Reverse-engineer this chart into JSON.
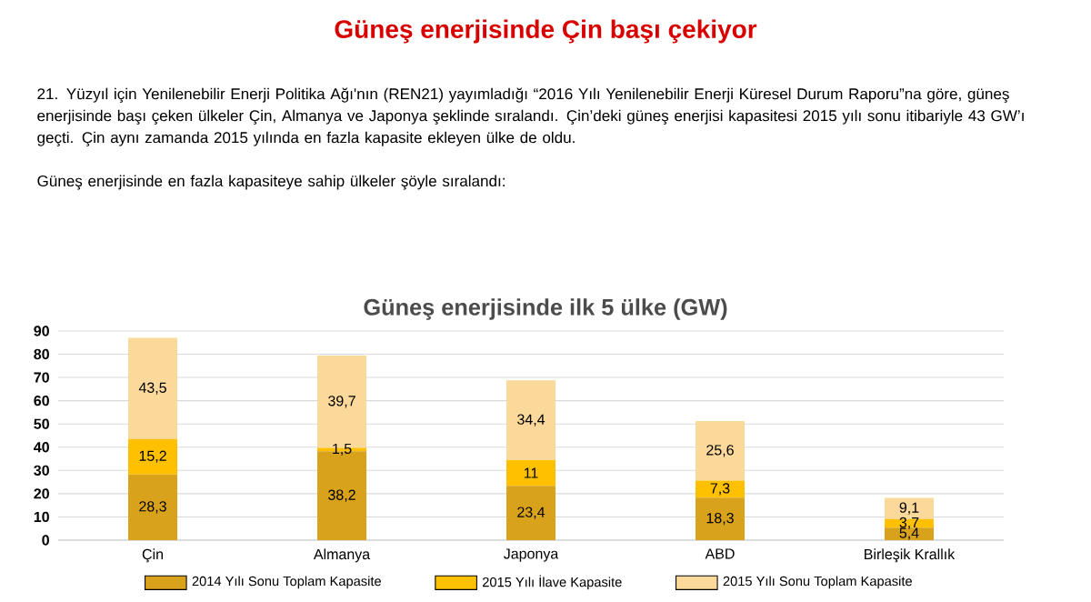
{
  "chart_data": {
    "type": "bar",
    "title": "Güneş enerjisinde Çin başı çekiyor",
    "subtitle": "Güneş enerjisinde ilk 5 ülke (GW)",
    "annotations": [
      "21. Yüzyıl için Yenilenebilir Enerji Politika Ağı'nın (REN21) yayımladığı “2016 Yılı Yenilenebilir Enerji Küresel Durum Raporu”na göre, güneş enerjisinde başı çeken ülkeler Çin, Almanya ve Japonya şeklinde sıralandı. Çin’deki güneş enerjisi kapasitesi 2015 yılı sonu itibariyle 43 GW’ı geçti. Çin aynı zamanda 2015 yılında en fazla kapasite ekleyen ülke de oldu.",
      "Güneş enerjisinde en fazla kapasiteye sahip ülkeler şöyle sıralandı:"
    ],
    "categories": [
      "Çin",
      "Almanya",
      "Japonya",
      "ABD",
      "Birleşik Krallık"
    ],
    "series": [
      {
        "name": "2014 Yılı Sonu Toplam Kapasite",
        "color": "#d9a21b",
        "values": [
          28.3,
          38.2,
          23.4,
          18.3,
          5.4
        ],
        "value_labels": [
          "28,3",
          "38,2",
          "23,4",
          "18,3",
          "5,4"
        ]
      },
      {
        "name": "2015 Yılı İlave Kapasite",
        "color": "#ffc000",
        "values": [
          15.2,
          1.5,
          11,
          7.3,
          3.7
        ],
        "value_labels": [
          "15,2",
          "1,5",
          "11",
          "7,3",
          "3,7"
        ]
      },
      {
        "name": "2015 Yılı Sonu Toplam Kapasite",
        "color": "#fbd99a",
        "values": [
          43.5,
          39.7,
          34.4,
          25.6,
          9.1
        ],
        "value_labels": [
          "43,5",
          "39,7",
          "34,4",
          "25,6",
          "9,1"
        ]
      }
    ],
    "stacked": true,
    "ylim": [
      0,
      90
    ],
    "yticks": [
      0,
      10,
      20,
      30,
      40,
      50,
      60,
      70,
      80,
      90
    ],
    "grid": "y",
    "legend": "bottom"
  }
}
